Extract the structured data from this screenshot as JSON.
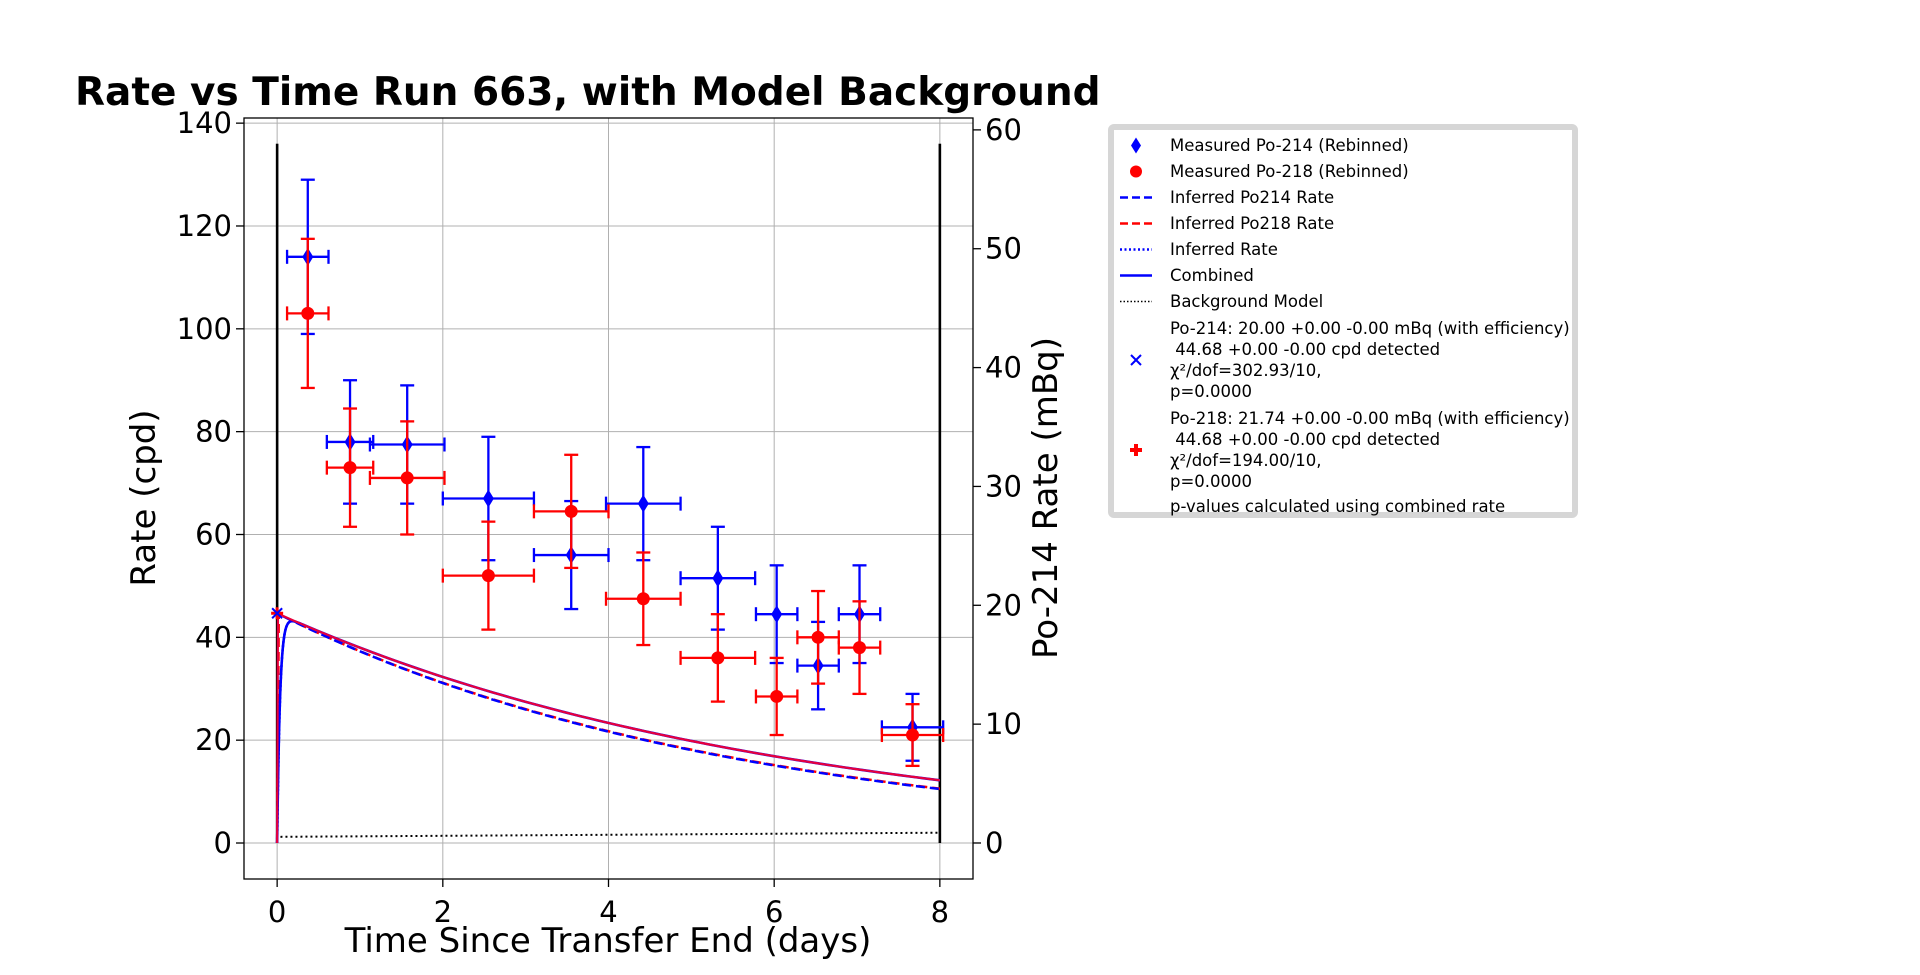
{
  "chart_data": {
    "type": "scatter",
    "title": "Rate vs Time Run 663, with Model Background",
    "xlabel": "Time Since Transfer End (days)",
    "ylabel": "Rate (cpd)",
    "y2label": "Po-214 Rate (mBq)",
    "xlim": [
      -0.4,
      8.4
    ],
    "ylim": [
      -7,
      141
    ],
    "y2lim": [
      -3.03,
      61.0
    ],
    "xticks": [
      "0",
      "2",
      "4",
      "6",
      "8"
    ],
    "yticks": [
      "0",
      "20",
      "40",
      "60",
      "80",
      "100",
      "120",
      "140"
    ],
    "y2ticks": [
      "0",
      "10",
      "20",
      "30",
      "40",
      "50",
      "60"
    ],
    "grid": true,
    "legend_position": "outside-right",
    "colors": {
      "po214": "#0000ff",
      "po218": "#ff0000",
      "background": "#000000",
      "combined_red": "#e8003c"
    },
    "series": [
      {
        "name": "Measured Po-214 (Rebinned)",
        "marker": "diamond",
        "color": "#0000ff",
        "points": [
          {
            "x": 0.37,
            "y": 114,
            "xerr": 0.25,
            "yerr": 15
          },
          {
            "x": 0.88,
            "y": 78,
            "xerr": 0.28,
            "yerr": 12
          },
          {
            "x": 1.57,
            "y": 77.5,
            "xerr": 0.45,
            "yerr": 11.5
          },
          {
            "x": 2.55,
            "y": 67,
            "xerr": 0.55,
            "yerr": 12
          },
          {
            "x": 3.55,
            "y": 56,
            "xerr": 0.45,
            "yerr": 10.5
          },
          {
            "x": 4.42,
            "y": 66,
            "xerr": 0.45,
            "yerr": 11
          },
          {
            "x": 5.32,
            "y": 51.5,
            "xerr": 0.45,
            "yerr": 10
          },
          {
            "x": 6.03,
            "y": 44.5,
            "xerr": 0.25,
            "yerr": 9.5
          },
          {
            "x": 6.53,
            "y": 34.5,
            "xerr": 0.25,
            "yerr": 8.5
          },
          {
            "x": 7.03,
            "y": 44.5,
            "xerr": 0.25,
            "yerr": 9.5
          },
          {
            "x": 7.67,
            "y": 22.5,
            "xerr": 0.37,
            "yerr": 6.5
          }
        ]
      },
      {
        "name": "Measured Po-218 (Rebinned)",
        "marker": "circle",
        "color": "#ff0000",
        "points": [
          {
            "x": 0.37,
            "y": 103,
            "xerr": 0.25,
            "yerr": 14.5
          },
          {
            "x": 0.88,
            "y": 73,
            "xerr": 0.28,
            "yerr": 11.5
          },
          {
            "x": 1.57,
            "y": 71,
            "xerr": 0.45,
            "yerr": 11
          },
          {
            "x": 2.55,
            "y": 52,
            "xerr": 0.55,
            "yerr": 10.5
          },
          {
            "x": 3.55,
            "y": 64.5,
            "xerr": 0.45,
            "yerr": 11
          },
          {
            "x": 4.42,
            "y": 47.5,
            "xerr": 0.45,
            "yerr": 9
          },
          {
            "x": 5.32,
            "y": 36,
            "xerr": 0.45,
            "yerr": 8.5
          },
          {
            "x": 6.03,
            "y": 28.5,
            "xerr": 0.25,
            "yerr": 7.5
          },
          {
            "x": 6.53,
            "y": 40,
            "xerr": 0.25,
            "yerr": 9
          },
          {
            "x": 7.03,
            "y": 38,
            "xerr": 0.25,
            "yerr": 9
          },
          {
            "x": 7.67,
            "y": 21,
            "xerr": 0.37,
            "yerr": 6
          }
        ]
      }
    ],
    "model_params": {
      "x_start": 0,
      "x_end": 8,
      "peak_rate": 44.68,
      "po214_end": 10.5,
      "combined_end": 12.2,
      "background_start": 1.2,
      "background_end": 2.0
    },
    "vertical_lines": [
      0,
      8
    ],
    "legend": [
      {
        "label": "Measured Po-214 (Rebinned)",
        "symbol": "diamond-blue"
      },
      {
        "label": "Measured Po-218 (Rebinned)",
        "symbol": "circle-red"
      },
      {
        "label": "Inferred Po214 Rate",
        "symbol": "dashed-blue"
      },
      {
        "label": "Inferred Po218 Rate",
        "symbol": "dashed-red"
      },
      {
        "label": "Inferred Rate",
        "symbol": "dotted-blue"
      },
      {
        "label": "Combined",
        "symbol": "solid-blue"
      },
      {
        "label": "Background Model",
        "symbol": "dotted-black"
      },
      {
        "label": "Po-214: 20.00 +0.00 -0.00 mBq (with efficiency)\n 44.68 +0.00 -0.00 cpd detected\nχ²/dof=302.93/10,\np=0.0000",
        "symbol": "x-blue"
      },
      {
        "label": "Po-218: 21.74 +0.00 -0.00 mBq (with efficiency)\n 44.68 +0.00 -0.00 cpd detected\nχ²/dof=194.00/10,\np=0.0000",
        "symbol": "plus-red"
      },
      {
        "label": "p-values calculated using combined rate",
        "symbol": "none"
      }
    ]
  }
}
